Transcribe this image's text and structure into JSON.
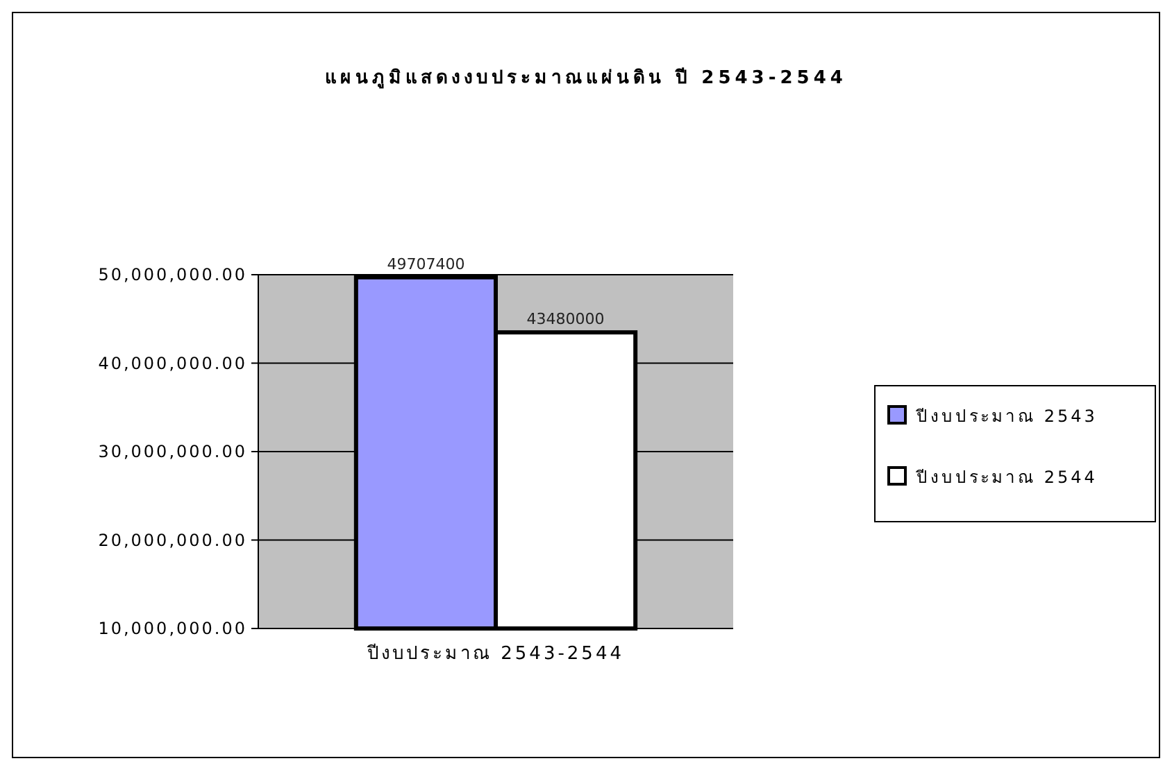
{
  "chart_data": {
    "type": "bar",
    "title": "แผนภูมิแสดงงบประมาณแผ่นดิน ปี 2543-2544",
    "categories": [
      "ปีงบประมาณ 2543-2544"
    ],
    "series": [
      {
        "name": "ปีงบประมาณ 2543",
        "color": "#9999ff",
        "values": [
          49707400
        ]
      },
      {
        "name": "ปีงบประมาณ 2544",
        "color": "#ffffff",
        "values": [
          43480000
        ]
      }
    ],
    "ylim": [
      10000000,
      50000000
    ],
    "yticks": [
      {
        "value": 10000000,
        "label": "10,000,000.00"
      },
      {
        "value": 20000000,
        "label": "20,000,000.00"
      },
      {
        "value": 30000000,
        "label": "30,000,000.00"
      },
      {
        "value": 40000000,
        "label": "40,000,000.00"
      },
      {
        "value": 50000000,
        "label": "50,000,000.00"
      }
    ],
    "grid": "y",
    "legend": "right",
    "data_labels": true
  }
}
